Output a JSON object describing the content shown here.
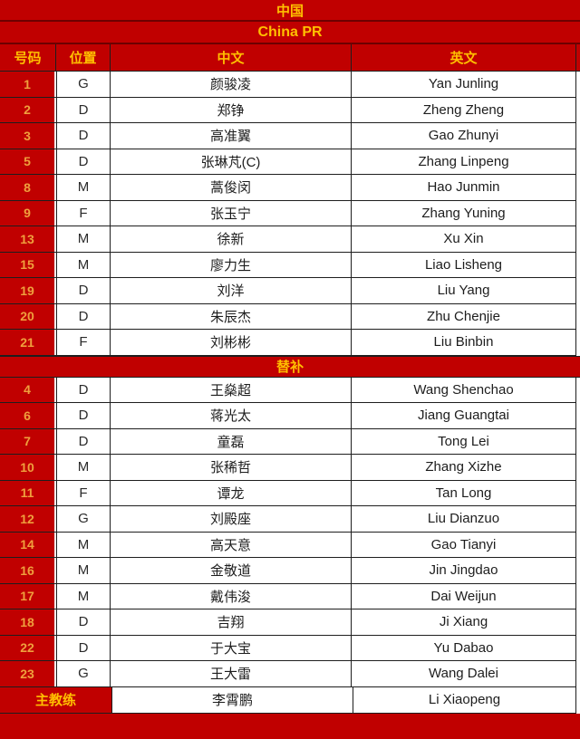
{
  "title_cn": "中国",
  "title_en": "China PR",
  "columns": [
    "号码",
    "位置",
    "中文",
    "英文"
  ],
  "substitutes_label": "替补",
  "starters": [
    {
      "no": "1",
      "pos": "G",
      "cn": "颜骏凌",
      "en": "Yan Junling"
    },
    {
      "no": "2",
      "pos": "D",
      "cn": "郑铮",
      "en": "Zheng Zheng"
    },
    {
      "no": "3",
      "pos": "D",
      "cn": "高准翼",
      "en": "Gao Zhunyi"
    },
    {
      "no": "5",
      "pos": "D",
      "cn": "张琳芃(C)",
      "en": "Zhang Linpeng"
    },
    {
      "no": "8",
      "pos": "M",
      "cn": "蒿俊闵",
      "en": "Hao Junmin"
    },
    {
      "no": "9",
      "pos": "F",
      "cn": "张玉宁",
      "en": "Zhang Yuning"
    },
    {
      "no": "13",
      "pos": "M",
      "cn": "徐新",
      "en": "Xu Xin"
    },
    {
      "no": "15",
      "pos": "M",
      "cn": "廖力生",
      "en": "Liao Lisheng"
    },
    {
      "no": "19",
      "pos": "D",
      "cn": "刘洋",
      "en": "Liu Yang"
    },
    {
      "no": "20",
      "pos": "D",
      "cn": "朱辰杰",
      "en": "Zhu Chenjie"
    },
    {
      "no": "21",
      "pos": "F",
      "cn": "刘彬彬",
      "en": "Liu Binbin"
    }
  ],
  "substitutes": [
    {
      "no": "4",
      "pos": "D",
      "cn": "王燊超",
      "en": "Wang Shenchao"
    },
    {
      "no": "6",
      "pos": "D",
      "cn": "蒋光太",
      "en": "Jiang Guangtai"
    },
    {
      "no": "7",
      "pos": "D",
      "cn": "童磊",
      "en": "Tong Lei"
    },
    {
      "no": "10",
      "pos": "M",
      "cn": "张稀哲",
      "en": "Zhang Xizhe"
    },
    {
      "no": "11",
      "pos": "F",
      "cn": "谭龙",
      "en": "Tan Long"
    },
    {
      "no": "12",
      "pos": "G",
      "cn": "刘殿座",
      "en": "Liu Dianzuo"
    },
    {
      "no": "14",
      "pos": "M",
      "cn": "高天意",
      "en": "Gao Tianyi"
    },
    {
      "no": "16",
      "pos": "M",
      "cn": "金敬道",
      "en": "Jin Jingdao"
    },
    {
      "no": "17",
      "pos": "M",
      "cn": "戴伟浚",
      "en": "Dai Weijun"
    },
    {
      "no": "18",
      "pos": "D",
      "cn": "吉翔",
      "en": "Ji Xiang"
    },
    {
      "no": "22",
      "pos": "D",
      "cn": "于大宝",
      "en": "Yu Dabao"
    },
    {
      "no": "23",
      "pos": "G",
      "cn": "王大雷",
      "en": "Wang Dalei"
    }
  ],
  "coach": {
    "label": "主教练",
    "cn": "李霄鹏",
    "en": "Li Xiaopeng"
  },
  "colors": {
    "red": "#C00000",
    "band_text": "#FFC000",
    "number_text": "#EF9F3D"
  }
}
